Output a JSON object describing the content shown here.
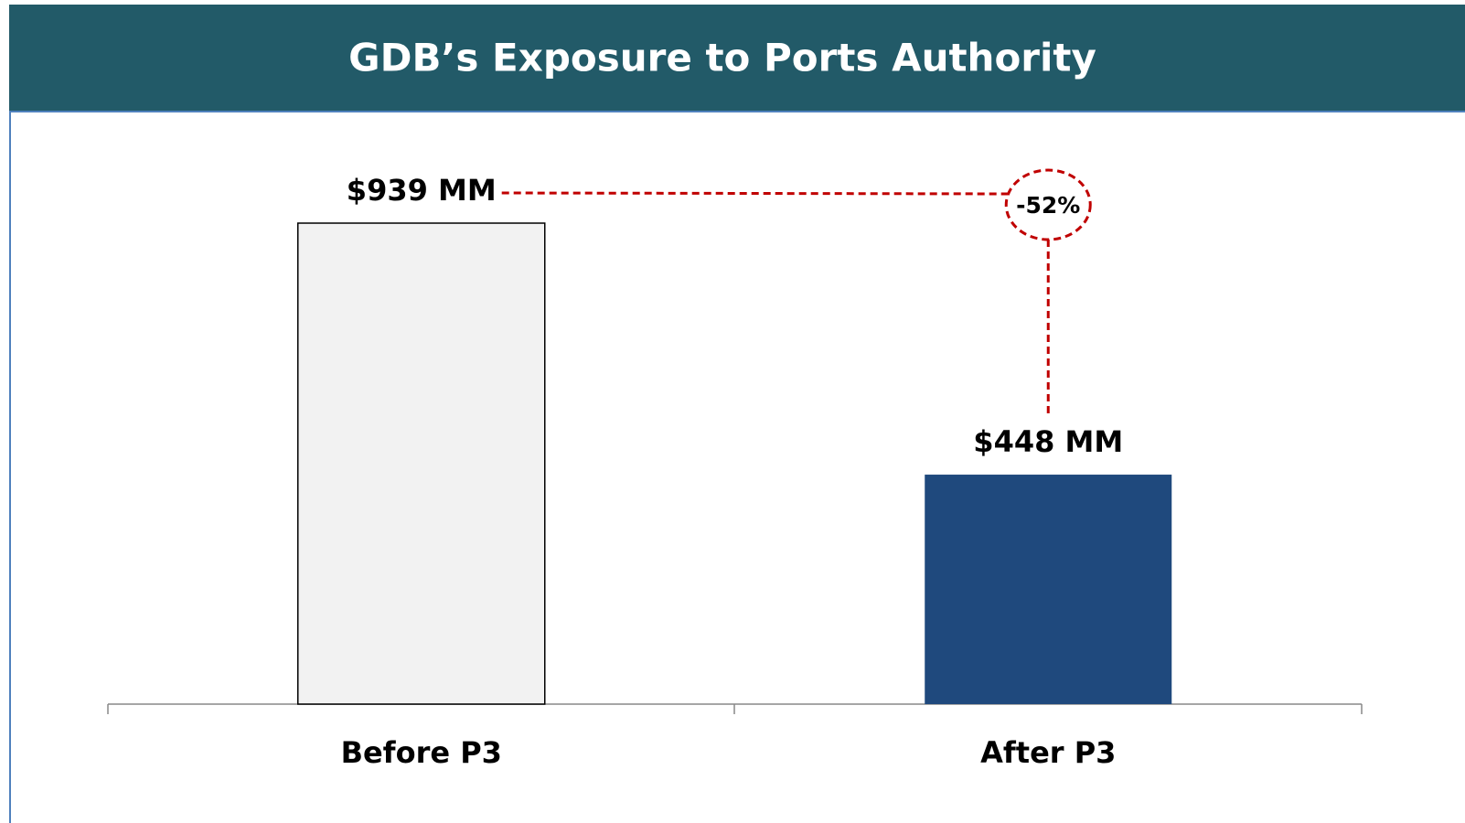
{
  "chart_data": {
    "type": "bar",
    "title": "GDB’s Exposure to Ports Authority",
    "categories": [
      "Before P3",
      "After P3"
    ],
    "values": [
      939,
      448
    ],
    "value_labels": [
      "$939 MM",
      "$448 MM"
    ],
    "colors": [
      "#f2f2f2",
      "#1f497d"
    ],
    "annotation": "-52%"
  }
}
